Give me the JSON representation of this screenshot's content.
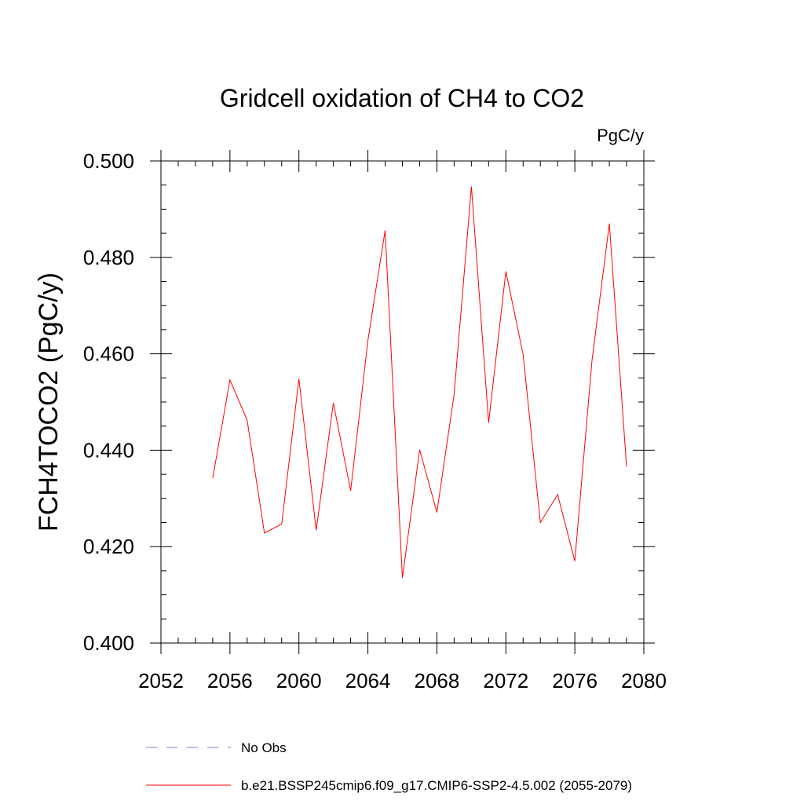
{
  "chart_data": {
    "type": "line",
    "title": "Gridcell oxidation of CH4 to CO2",
    "units_label": "PgC/y",
    "ylabel": "FCH4TOCO2  (PgC/y)",
    "xlabel": "",
    "xlim": [
      2052,
      2080
    ],
    "ylim": [
      0.4,
      0.5
    ],
    "x_ticks": [
      2052,
      2056,
      2060,
      2064,
      2068,
      2072,
      2076,
      2080
    ],
    "x_tick_labels": [
      "2052",
      "2056",
      "2060",
      "2064",
      "2068",
      "2072",
      "2076",
      "2080"
    ],
    "y_ticks": [
      0.4,
      0.42,
      0.44,
      0.46,
      0.48,
      0.5
    ],
    "y_tick_labels": [
      "0.400",
      "0.420",
      "0.440",
      "0.460",
      "0.480",
      "0.500"
    ],
    "x_minor_step": 1,
    "y_minor_step": 0.005,
    "grid": false,
    "legend_position": "bottom",
    "series": [
      {
        "name": "b.e21.BSSP245cmip6.f09_g17.CMIP6-SSP2-4.5.002 (2055-2079)",
        "color": "#ff0000",
        "style": "solid",
        "x": [
          2055,
          2056,
          2057,
          2058,
          2059,
          2060,
          2061,
          2062,
          2063,
          2064,
          2065,
          2066,
          2067,
          2068,
          2069,
          2070,
          2071,
          2072,
          2073,
          2074,
          2075,
          2076,
          2077,
          2078,
          2079
        ],
        "y": [
          0.4342,
          0.4546,
          0.4462,
          0.4228,
          0.4247,
          0.4548,
          0.4234,
          0.4498,
          0.4316,
          0.4628,
          0.4856,
          0.4135,
          0.4401,
          0.4271,
          0.4516,
          0.4947,
          0.4457,
          0.4771,
          0.4598,
          0.425,
          0.4308,
          0.417,
          0.4588,
          0.487,
          0.4366
        ]
      }
    ],
    "legend": [
      {
        "label": "No Obs",
        "color": "#7b7bd6",
        "style": "dashed"
      },
      {
        "label": "b.e21.BSSP245cmip6.f09_g17.CMIP6-SSP2-4.5.002 (2055-2079)",
        "color": "#ff0000",
        "style": "solid"
      }
    ]
  }
}
